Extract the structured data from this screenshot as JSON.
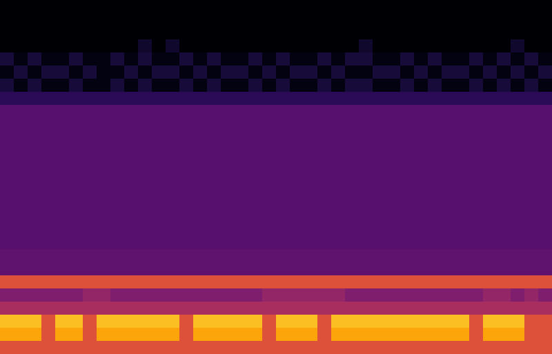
{
  "chart_data": {
    "type": "heatmap",
    "tick_labels": false,
    "color": "inferno",
    "zlim": [
      0,
      1
    ],
    "cells": [
      [
        0,
        0,
        0,
        0,
        0,
        0,
        0,
        0,
        0,
        0,
        0,
        0,
        0,
        0,
        0,
        0,
        0,
        0,
        0,
        0,
        0,
        0,
        0,
        0,
        0,
        0,
        0,
        0,
        0,
        0,
        0,
        0,
        0,
        0,
        0,
        0,
        0,
        0,
        0,
        0
      ],
      [
        0,
        0,
        0,
        0,
        0,
        0,
        0,
        0,
        0,
        0,
        0,
        0,
        0,
        0,
        0,
        0,
        0,
        0,
        0,
        0,
        0,
        0,
        0,
        0,
        0,
        0,
        0,
        0,
        0,
        0,
        0,
        0,
        0,
        0,
        0,
        0,
        0,
        0,
        0,
        0
      ],
      [
        0,
        0,
        0,
        0,
        0,
        0,
        0,
        0,
        0,
        0,
        0,
        0,
        0,
        0,
        0,
        0,
        0,
        0,
        0,
        0,
        0,
        0,
        0,
        0,
        0,
        0,
        0,
        0,
        0,
        0,
        0,
        0,
        0,
        0,
        0,
        0,
        0,
        0,
        0,
        0
      ],
      [
        0,
        0,
        0,
        0,
        0,
        0,
        0,
        0,
        0,
        0,
        0.08,
        0,
        0.08,
        0,
        0,
        0,
        0,
        0,
        0,
        0,
        0,
        0,
        0,
        0,
        0,
        0,
        0.08,
        0,
        0,
        0,
        0,
        0,
        0,
        0,
        0,
        0,
        0,
        0.08,
        0,
        0
      ],
      [
        0.1,
        0.03,
        0.1,
        0.03,
        0.03,
        0.1,
        0.03,
        0.03,
        0.1,
        0.03,
        0.1,
        0.03,
        0.03,
        0.1,
        0.03,
        0.1,
        0.03,
        0.03,
        0.1,
        0.03,
        0.1,
        0.03,
        0.03,
        0.1,
        0.03,
        0.1,
        0.1,
        0.03,
        0.03,
        0.1,
        0.03,
        0.1,
        0.03,
        0.03,
        0.1,
        0.03,
        0.1,
        0.03,
        0.1,
        0.03
      ],
      [
        0.03,
        0.1,
        0.03,
        0.1,
        0.1,
        0.03,
        0.1,
        0.03,
        0.03,
        0.1,
        0.03,
        0.1,
        0.1,
        0.03,
        0.1,
        0.03,
        0.1,
        0.1,
        0.03,
        0.1,
        0.03,
        0.1,
        0.1,
        0.03,
        0.1,
        0.03,
        0.03,
        0.1,
        0.1,
        0.03,
        0.1,
        0.03,
        0.1,
        0.1,
        0.03,
        0.1,
        0.03,
        0.1,
        0.03,
        0.1
      ],
      [
        0.1,
        0.03,
        0.1,
        0.03,
        0.03,
        0.1,
        0.03,
        0.03,
        0.1,
        0.03,
        0.1,
        0.03,
        0.03,
        0.1,
        0.03,
        0.1,
        0.03,
        0.03,
        0.1,
        0.03,
        0.1,
        0.03,
        0.03,
        0.1,
        0.03,
        0.1,
        0.1,
        0.03,
        0.03,
        0.1,
        0.03,
        0.1,
        0.03,
        0.03,
        0.1,
        0.03,
        0.1,
        0.03,
        0.1,
        0.03
      ],
      [
        0.15,
        0.15,
        0.15,
        0.15,
        0.15,
        0.15,
        0.15,
        0.15,
        0.15,
        0.15,
        0.15,
        0.15,
        0.15,
        0.15,
        0.15,
        0.15,
        0.15,
        0.15,
        0.15,
        0.15,
        0.15,
        0.15,
        0.15,
        0.15,
        0.15,
        0.15,
        0.15,
        0.15,
        0.15,
        0.15,
        0.15,
        0.15,
        0.15,
        0.15,
        0.15,
        0.15,
        0.15,
        0.15,
        0.15,
        0.15
      ],
      [
        0.25,
        0.25,
        0.25,
        0.25,
        0.25,
        0.25,
        0.25,
        0.25,
        0.25,
        0.25,
        0.25,
        0.25,
        0.25,
        0.25,
        0.25,
        0.25,
        0.25,
        0.25,
        0.25,
        0.25,
        0.25,
        0.25,
        0.25,
        0.25,
        0.25,
        0.25,
        0.25,
        0.25,
        0.25,
        0.25,
        0.25,
        0.25,
        0.25,
        0.25,
        0.25,
        0.25,
        0.25,
        0.25,
        0.25,
        0.25
      ],
      [
        0.25,
        0.25,
        0.25,
        0.25,
        0.25,
        0.25,
        0.25,
        0.25,
        0.25,
        0.25,
        0.25,
        0.25,
        0.25,
        0.25,
        0.25,
        0.25,
        0.25,
        0.25,
        0.25,
        0.25,
        0.25,
        0.25,
        0.25,
        0.25,
        0.25,
        0.25,
        0.25,
        0.25,
        0.25,
        0.25,
        0.25,
        0.25,
        0.25,
        0.25,
        0.25,
        0.25,
        0.25,
        0.25,
        0.25,
        0.25
      ],
      [
        0.25,
        0.25,
        0.25,
        0.25,
        0.25,
        0.25,
        0.25,
        0.25,
        0.25,
        0.25,
        0.25,
        0.25,
        0.25,
        0.25,
        0.25,
        0.25,
        0.25,
        0.25,
        0.25,
        0.25,
        0.25,
        0.25,
        0.25,
        0.25,
        0.25,
        0.25,
        0.25,
        0.25,
        0.25,
        0.25,
        0.25,
        0.25,
        0.25,
        0.25,
        0.25,
        0.25,
        0.25,
        0.25,
        0.25,
        0.25
      ],
      [
        0.25,
        0.25,
        0.25,
        0.25,
        0.25,
        0.25,
        0.25,
        0.25,
        0.25,
        0.25,
        0.25,
        0.25,
        0.25,
        0.25,
        0.25,
        0.25,
        0.25,
        0.25,
        0.25,
        0.25,
        0.25,
        0.25,
        0.25,
        0.25,
        0.25,
        0.25,
        0.25,
        0.25,
        0.25,
        0.25,
        0.25,
        0.25,
        0.25,
        0.25,
        0.25,
        0.25,
        0.25,
        0.25,
        0.25,
        0.25
      ],
      [
        0.25,
        0.25,
        0.25,
        0.25,
        0.25,
        0.25,
        0.25,
        0.25,
        0.25,
        0.25,
        0.25,
        0.25,
        0.25,
        0.25,
        0.25,
        0.25,
        0.25,
        0.25,
        0.25,
        0.25,
        0.25,
        0.25,
        0.25,
        0.25,
        0.25,
        0.25,
        0.25,
        0.25,
        0.25,
        0.25,
        0.25,
        0.25,
        0.25,
        0.25,
        0.25,
        0.25,
        0.25,
        0.25,
        0.25,
        0.25
      ],
      [
        0.25,
        0.25,
        0.25,
        0.25,
        0.25,
        0.25,
        0.25,
        0.25,
        0.25,
        0.25,
        0.25,
        0.25,
        0.25,
        0.25,
        0.25,
        0.25,
        0.25,
        0.25,
        0.25,
        0.25,
        0.25,
        0.25,
        0.25,
        0.25,
        0.25,
        0.25,
        0.25,
        0.25,
        0.25,
        0.25,
        0.25,
        0.25,
        0.25,
        0.25,
        0.25,
        0.25,
        0.25,
        0.25,
        0.25,
        0.25
      ],
      [
        0.25,
        0.25,
        0.25,
        0.25,
        0.25,
        0.25,
        0.25,
        0.25,
        0.25,
        0.25,
        0.25,
        0.25,
        0.25,
        0.25,
        0.25,
        0.25,
        0.25,
        0.25,
        0.25,
        0.25,
        0.25,
        0.25,
        0.25,
        0.25,
        0.25,
        0.25,
        0.25,
        0.25,
        0.25,
        0.25,
        0.25,
        0.25,
        0.25,
        0.25,
        0.25,
        0.25,
        0.25,
        0.25,
        0.25,
        0.25
      ],
      [
        0.25,
        0.25,
        0.25,
        0.25,
        0.25,
        0.25,
        0.25,
        0.25,
        0.25,
        0.25,
        0.25,
        0.25,
        0.25,
        0.25,
        0.25,
        0.25,
        0.25,
        0.25,
        0.25,
        0.25,
        0.25,
        0.25,
        0.25,
        0.25,
        0.25,
        0.25,
        0.25,
        0.25,
        0.25,
        0.25,
        0.25,
        0.25,
        0.25,
        0.25,
        0.25,
        0.25,
        0.25,
        0.25,
        0.25,
        0.25
      ],
      [
        0.25,
        0.25,
        0.25,
        0.25,
        0.25,
        0.25,
        0.25,
        0.25,
        0.25,
        0.25,
        0.25,
        0.25,
        0.25,
        0.25,
        0.25,
        0.25,
        0.25,
        0.25,
        0.25,
        0.25,
        0.25,
        0.25,
        0.25,
        0.25,
        0.25,
        0.25,
        0.25,
        0.25,
        0.25,
        0.25,
        0.25,
        0.25,
        0.25,
        0.25,
        0.25,
        0.25,
        0.25,
        0.25,
        0.25,
        0.25
      ],
      [
        0.25,
        0.25,
        0.25,
        0.25,
        0.25,
        0.25,
        0.25,
        0.25,
        0.25,
        0.25,
        0.25,
        0.25,
        0.25,
        0.25,
        0.25,
        0.25,
        0.25,
        0.25,
        0.25,
        0.25,
        0.25,
        0.25,
        0.25,
        0.25,
        0.25,
        0.25,
        0.25,
        0.25,
        0.25,
        0.25,
        0.25,
        0.25,
        0.25,
        0.25,
        0.25,
        0.25,
        0.25,
        0.25,
        0.25,
        0.25
      ],
      [
        0.25,
        0.25,
        0.25,
        0.25,
        0.25,
        0.25,
        0.25,
        0.25,
        0.25,
        0.25,
        0.25,
        0.25,
        0.25,
        0.25,
        0.25,
        0.25,
        0.25,
        0.25,
        0.25,
        0.25,
        0.25,
        0.25,
        0.25,
        0.25,
        0.25,
        0.25,
        0.25,
        0.25,
        0.25,
        0.25,
        0.25,
        0.25,
        0.25,
        0.25,
        0.25,
        0.25,
        0.25,
        0.25,
        0.25,
        0.25
      ],
      [
        0.27,
        0.27,
        0.27,
        0.27,
        0.27,
        0.27,
        0.27,
        0.27,
        0.27,
        0.27,
        0.27,
        0.27,
        0.27,
        0.27,
        0.27,
        0.27,
        0.27,
        0.27,
        0.27,
        0.27,
        0.27,
        0.27,
        0.27,
        0.27,
        0.27,
        0.27,
        0.27,
        0.27,
        0.27,
        0.27,
        0.27,
        0.27,
        0.27,
        0.27,
        0.27,
        0.27,
        0.27,
        0.27,
        0.27,
        0.27
      ],
      [
        0.27,
        0.27,
        0.27,
        0.27,
        0.27,
        0.27,
        0.27,
        0.27,
        0.27,
        0.27,
        0.27,
        0.27,
        0.27,
        0.27,
        0.27,
        0.27,
        0.27,
        0.27,
        0.27,
        0.27,
        0.27,
        0.27,
        0.27,
        0.27,
        0.27,
        0.27,
        0.27,
        0.27,
        0.27,
        0.27,
        0.27,
        0.27,
        0.27,
        0.27,
        0.27,
        0.27,
        0.27,
        0.27,
        0.27,
        0.27
      ],
      [
        0.6,
        0.6,
        0.6,
        0.6,
        0.6,
        0.6,
        0.6,
        0.6,
        0.6,
        0.6,
        0.6,
        0.6,
        0.6,
        0.6,
        0.6,
        0.6,
        0.6,
        0.6,
        0.6,
        0.6,
        0.6,
        0.6,
        0.6,
        0.6,
        0.6,
        0.6,
        0.6,
        0.6,
        0.6,
        0.6,
        0.6,
        0.6,
        0.6,
        0.6,
        0.6,
        0.6,
        0.6,
        0.6,
        0.6,
        0.6
      ],
      [
        0.35,
        0.35,
        0.35,
        0.35,
        0.35,
        0.35,
        0.4,
        0.4,
        0.35,
        0.35,
        0.35,
        0.35,
        0.35,
        0.35,
        0.35,
        0.35,
        0.35,
        0.35,
        0.35,
        0.4,
        0.4,
        0.4,
        0.4,
        0.4,
        0.4,
        0.35,
        0.35,
        0.35,
        0.35,
        0.35,
        0.35,
        0.35,
        0.35,
        0.35,
        0.35,
        0.4,
        0.4,
        0.35,
        0.4,
        0.35
      ],
      [
        0.45,
        0.45,
        0.45,
        0.45,
        0.45,
        0.45,
        0.45,
        0.45,
        0.45,
        0.45,
        0.45,
        0.45,
        0.45,
        0.45,
        0.45,
        0.45,
        0.45,
        0.45,
        0.45,
        0.45,
        0.45,
        0.45,
        0.45,
        0.45,
        0.45,
        0.45,
        0.45,
        0.45,
        0.45,
        0.45,
        0.45,
        0.45,
        0.45,
        0.45,
        0.45,
        0.45,
        0.45,
        0.45,
        0.45,
        0.45
      ],
      [
        0.85,
        0.85,
        0.85,
        0.6,
        0.85,
        0.85,
        0.6,
        0.85,
        0.85,
        0.85,
        0.85,
        0.85,
        0.85,
        0.6,
        0.85,
        0.85,
        0.85,
        0.85,
        0.85,
        0.6,
        0.85,
        0.85,
        0.85,
        0.6,
        0.85,
        0.85,
        0.85,
        0.85,
        0.85,
        0.85,
        0.85,
        0.85,
        0.85,
        0.85,
        0.6,
        0.85,
        0.85,
        0.85,
        0.6,
        0.6
      ],
      [
        0.8,
        0.8,
        0.8,
        0.6,
        0.8,
        0.8,
        0.6,
        0.8,
        0.8,
        0.8,
        0.8,
        0.8,
        0.8,
        0.6,
        0.8,
        0.8,
        0.8,
        0.8,
        0.8,
        0.6,
        0.8,
        0.8,
        0.8,
        0.6,
        0.8,
        0.8,
        0.8,
        0.8,
        0.8,
        0.8,
        0.8,
        0.8,
        0.8,
        0.8,
        0.6,
        0.8,
        0.8,
        0.8,
        0.6,
        0.6
      ],
      [
        0.6,
        0.6,
        0.6,
        0.6,
        0.6,
        0.6,
        0.6,
        0.6,
        0.6,
        0.6,
        0.6,
        0.6,
        0.6,
        0.6,
        0.6,
        0.6,
        0.6,
        0.6,
        0.6,
        0.6,
        0.6,
        0.6,
        0.6,
        0.6,
        0.6,
        0.6,
        0.6,
        0.6,
        0.6,
        0.6,
        0.6,
        0.6,
        0.6,
        0.6,
        0.6,
        0.6,
        0.6,
        0.6,
        0.6,
        0.6
      ]
    ]
  }
}
